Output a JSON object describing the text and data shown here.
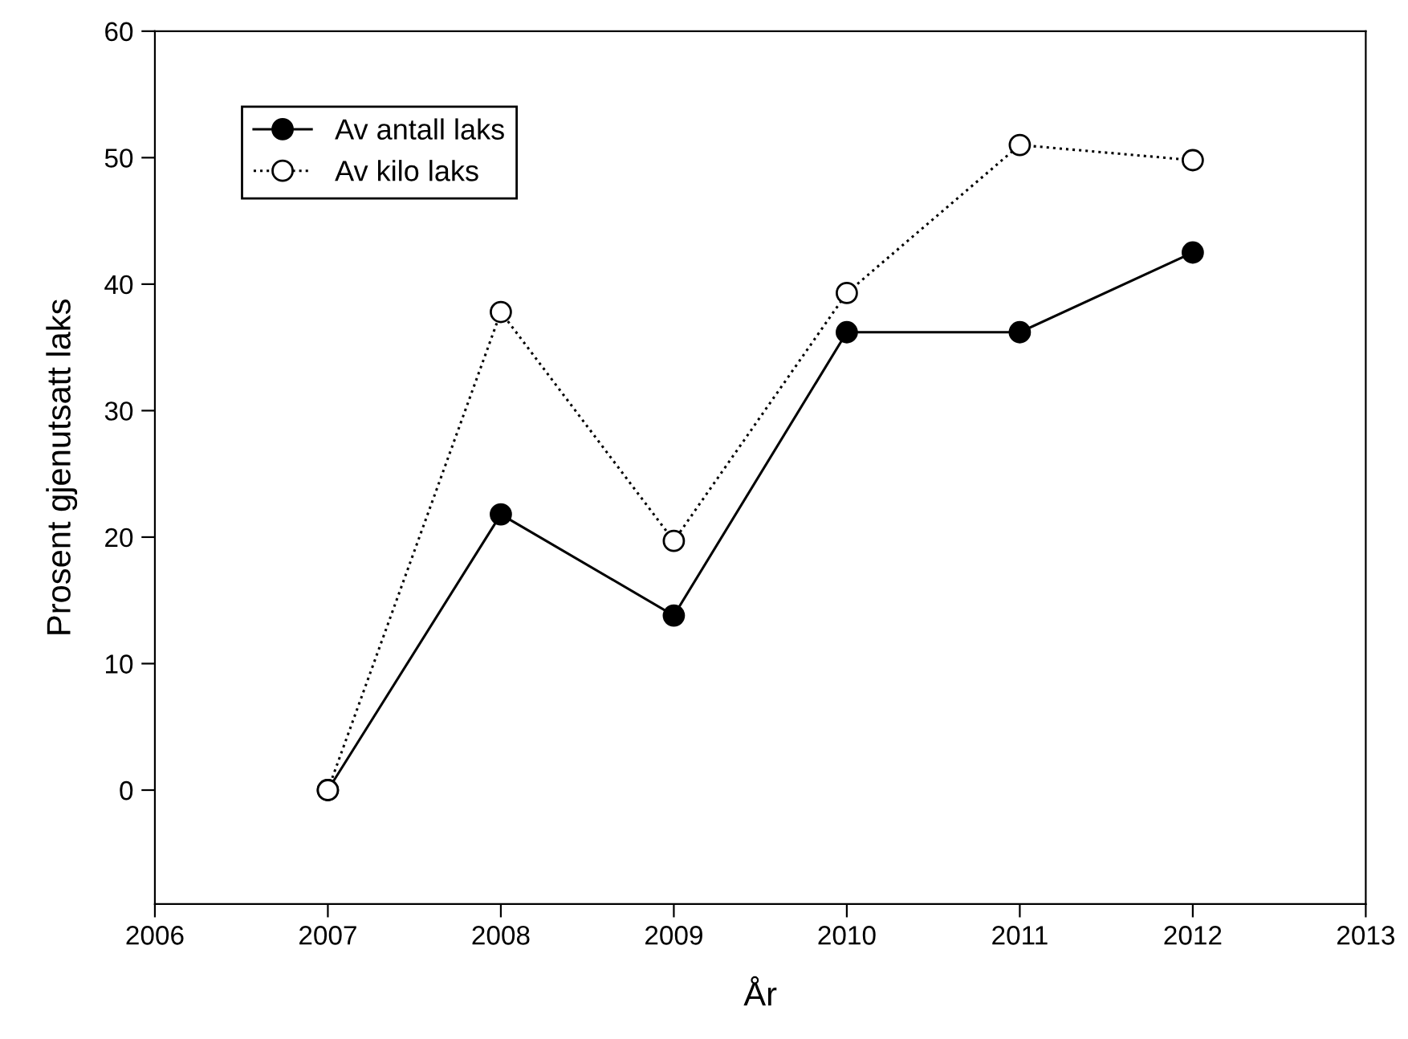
{
  "chart_data": {
    "type": "line",
    "xlabel": "År",
    "ylabel": "Prosent gjenutsatt laks",
    "x": [
      2007,
      2008,
      2009,
      2010,
      2011,
      2012
    ],
    "series": [
      {
        "name": "Av antall laks",
        "color": "#000000",
        "line_style": "solid",
        "values": [
          0,
          21.8,
          13.8,
          36.2,
          36.2,
          42.5
        ]
      },
      {
        "name": "Av kilo laks",
        "color": "#000000",
        "line_style": "dotted",
        "values": [
          0,
          37.8,
          19.7,
          39.3,
          51.0,
          49.8
        ]
      }
    ],
    "xlim": [
      2006,
      2013
    ],
    "xticks": [
      2006,
      2007,
      2008,
      2009,
      2010,
      2011,
      2012,
      2013
    ],
    "ylim": [
      -9,
      60
    ],
    "yticks": [
      0,
      10,
      20,
      30,
      40,
      50,
      60
    ],
    "marker": "circle",
    "grid": false,
    "legend": "top left"
  }
}
